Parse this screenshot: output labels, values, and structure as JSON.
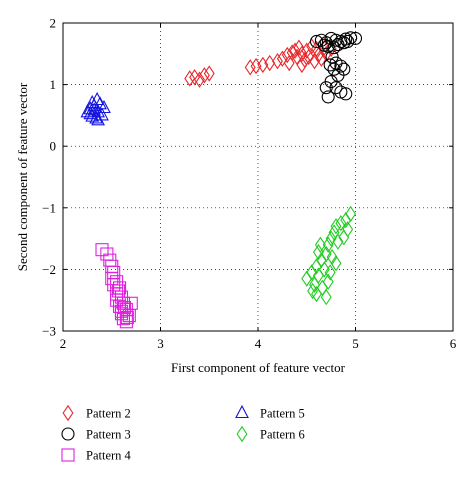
{
  "chart_data": {
    "type": "scatter",
    "xlabel": "First component of feature vector",
    "ylabel": "Second component of feature vector",
    "xlim": [
      2,
      6
    ],
    "ylim": [
      -3,
      2
    ],
    "xticks": [
      2,
      3,
      4,
      5,
      6
    ],
    "yticks": [
      -3,
      -2,
      -1,
      0,
      1,
      2
    ],
    "grid": true,
    "legend_position": "bottom",
    "series": [
      {
        "name": "Pattern 2",
        "marker": "diamond",
        "color": "#e8282a",
        "points": [
          [
            3.3,
            1.1
          ],
          [
            3.35,
            1.12
          ],
          [
            3.4,
            1.08
          ],
          [
            3.45,
            1.15
          ],
          [
            3.5,
            1.18
          ],
          [
            3.92,
            1.28
          ],
          [
            3.98,
            1.3
          ],
          [
            4.05,
            1.32
          ],
          [
            4.12,
            1.35
          ],
          [
            4.2,
            1.38
          ],
          [
            4.25,
            1.42
          ],
          [
            4.3,
            1.48
          ],
          [
            4.35,
            1.52
          ],
          [
            4.4,
            1.45
          ],
          [
            4.38,
            1.55
          ],
          [
            4.42,
            1.6
          ],
          [
            4.45,
            1.5
          ],
          [
            4.48,
            1.4
          ],
          [
            4.5,
            1.55
          ],
          [
            4.55,
            1.62
          ],
          [
            4.6,
            1.58
          ],
          [
            4.62,
            1.48
          ],
          [
            4.65,
            1.42
          ],
          [
            4.58,
            1.38
          ],
          [
            4.7,
            1.5
          ],
          [
            4.32,
            1.35
          ],
          [
            4.45,
            1.32
          ],
          [
            4.52,
            1.45
          ],
          [
            4.68,
            1.6
          ],
          [
            4.75,
            1.58
          ]
        ]
      },
      {
        "name": "Pattern 3",
        "marker": "circle",
        "color": "#000000",
        "points": [
          [
            4.6,
            1.7
          ],
          [
            4.65,
            1.72
          ],
          [
            4.7,
            1.68
          ],
          [
            4.75,
            1.75
          ],
          [
            4.8,
            1.72
          ],
          [
            4.85,
            1.7
          ],
          [
            4.9,
            1.74
          ],
          [
            4.95,
            1.76
          ],
          [
            5.0,
            1.75
          ],
          [
            4.72,
            1.62
          ],
          [
            4.78,
            1.6
          ],
          [
            4.82,
            1.65
          ],
          [
            4.68,
            1.64
          ],
          [
            4.88,
            1.68
          ],
          [
            4.92,
            1.7
          ],
          [
            4.76,
            1.45
          ],
          [
            4.8,
            1.35
          ],
          [
            4.85,
            1.3
          ],
          [
            4.78,
            1.25
          ],
          [
            4.82,
            1.15
          ],
          [
            4.75,
            1.05
          ],
          [
            4.8,
            0.95
          ],
          [
            4.85,
            0.88
          ],
          [
            4.72,
            0.8
          ],
          [
            4.7,
            0.95
          ],
          [
            4.9,
            0.85
          ],
          [
            4.88,
            1.25
          ],
          [
            4.74,
            1.32
          ]
        ]
      },
      {
        "name": "Pattern 4",
        "marker": "square",
        "color": "#e020e0",
        "points": [
          [
            2.4,
            -1.68
          ],
          [
            2.45,
            -1.75
          ],
          [
            2.48,
            -1.85
          ],
          [
            2.5,
            -1.95
          ],
          [
            2.52,
            -2.05
          ],
          [
            2.5,
            -2.15
          ],
          [
            2.55,
            -2.2
          ],
          [
            2.58,
            -2.3
          ],
          [
            2.55,
            -2.4
          ],
          [
            2.6,
            -2.45
          ],
          [
            2.62,
            -2.55
          ],
          [
            2.58,
            -2.6
          ],
          [
            2.65,
            -2.65
          ],
          [
            2.6,
            -2.72
          ],
          [
            2.62,
            -2.8
          ],
          [
            2.65,
            -2.85
          ],
          [
            2.68,
            -2.75
          ],
          [
            2.7,
            -2.55
          ],
          [
            2.55,
            -2.5
          ],
          [
            2.57,
            -2.35
          ],
          [
            2.52,
            -2.25
          ],
          [
            2.6,
            -2.68
          ],
          [
            2.66,
            -2.78
          ],
          [
            2.63,
            -2.62
          ]
        ]
      },
      {
        "name": "Pattern 5",
        "marker": "triangle",
        "color": "#1414e0",
        "points": [
          [
            2.25,
            0.55
          ],
          [
            2.28,
            0.6
          ],
          [
            2.3,
            0.7
          ],
          [
            2.32,
            0.65
          ],
          [
            2.35,
            0.75
          ],
          [
            2.38,
            0.68
          ],
          [
            2.36,
            0.55
          ],
          [
            2.3,
            0.48
          ],
          [
            2.34,
            0.45
          ],
          [
            2.4,
            0.5
          ],
          [
            2.42,
            0.62
          ],
          [
            2.32,
            0.58
          ],
          [
            2.36,
            0.42
          ],
          [
            2.28,
            0.52
          ]
        ]
      },
      {
        "name": "Pattern 6",
        "marker": "diamond",
        "color": "#22cc22",
        "points": [
          [
            4.5,
            -2.15
          ],
          [
            4.55,
            -2.05
          ],
          [
            4.58,
            -2.25
          ],
          [
            4.6,
            -1.95
          ],
          [
            4.62,
            -2.1
          ],
          [
            4.65,
            -1.85
          ],
          [
            4.68,
            -2.0
          ],
          [
            4.7,
            -1.75
          ],
          [
            4.72,
            -1.6
          ],
          [
            4.75,
            -1.5
          ],
          [
            4.78,
            -1.4
          ],
          [
            4.8,
            -1.3
          ],
          [
            4.85,
            -1.25
          ],
          [
            4.9,
            -1.2
          ],
          [
            4.95,
            -1.1
          ],
          [
            4.82,
            -1.55
          ],
          [
            4.76,
            -1.8
          ],
          [
            4.72,
            -2.2
          ],
          [
            4.66,
            -2.3
          ],
          [
            4.6,
            -2.4
          ],
          [
            4.7,
            -2.45
          ],
          [
            4.62,
            -1.72
          ],
          [
            4.88,
            -1.48
          ],
          [
            4.92,
            -1.35
          ],
          [
            4.74,
            -2.05
          ],
          [
            4.56,
            -2.35
          ],
          [
            4.64,
            -1.6
          ],
          [
            4.8,
            -1.9
          ]
        ]
      }
    ]
  }
}
